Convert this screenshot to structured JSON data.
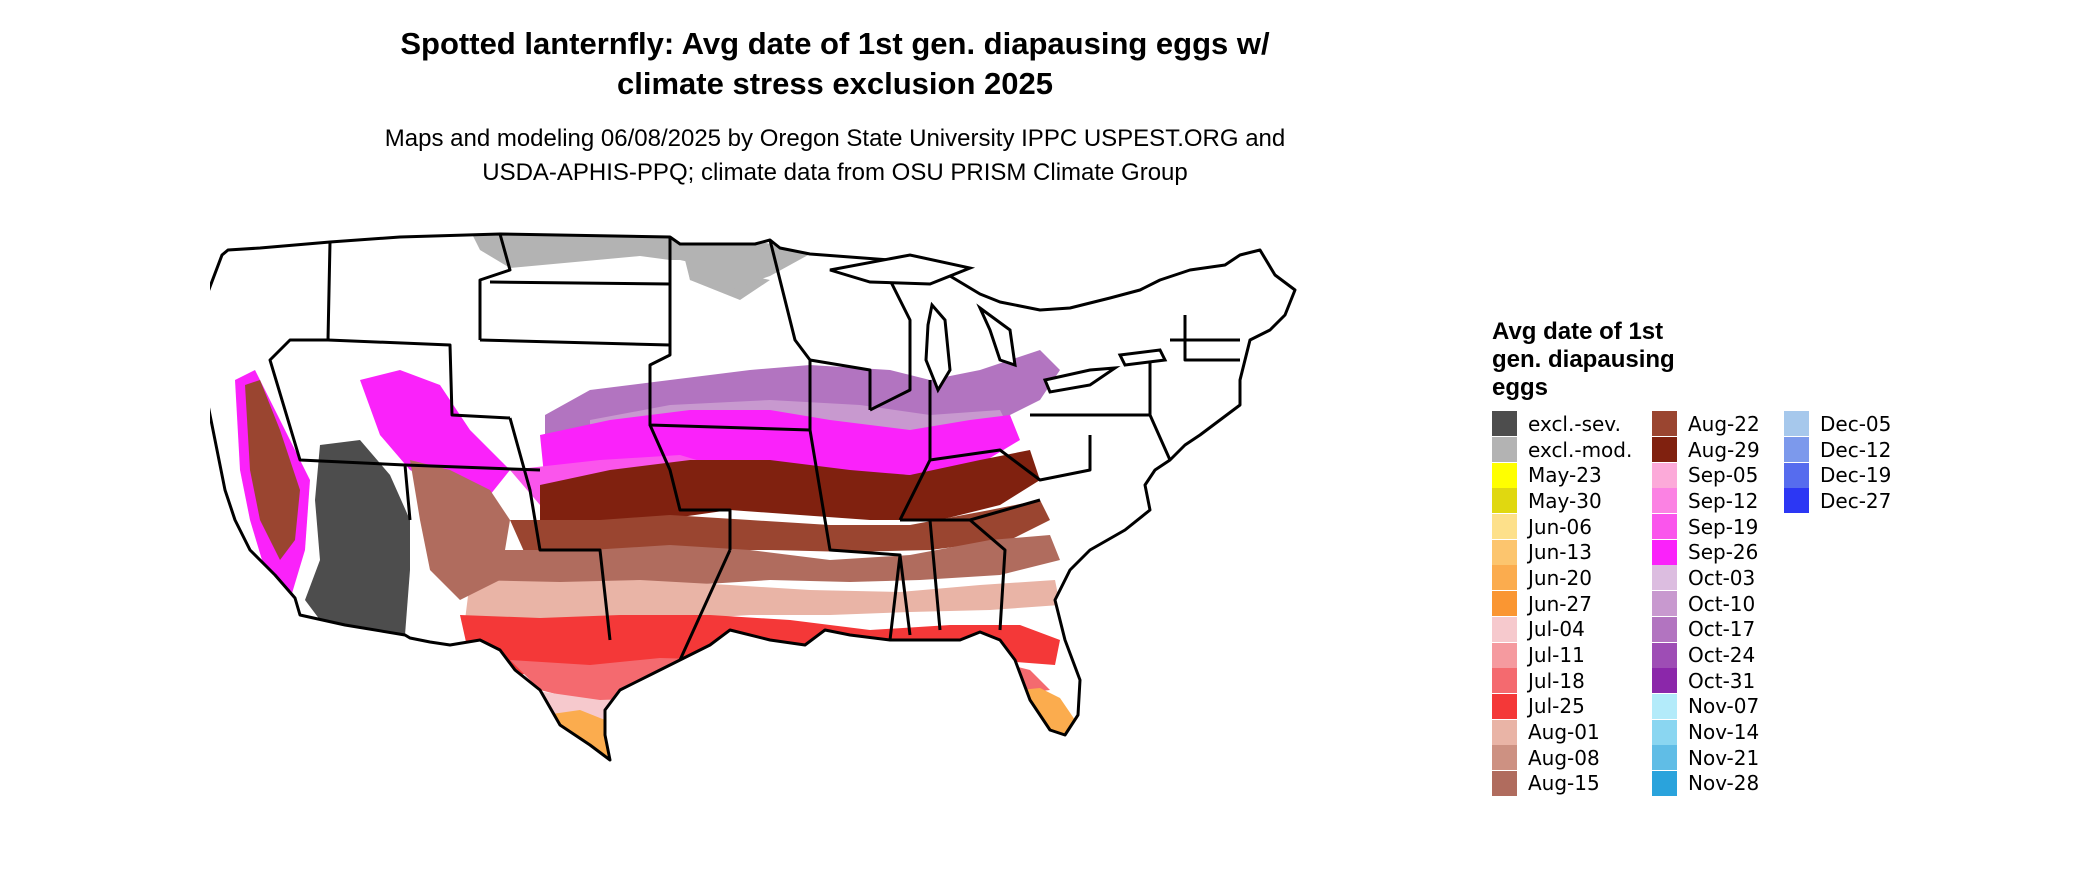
{
  "header": {
    "title_line1": "Spotted lanternfly: Avg date of 1st gen. diapausing eggs w/",
    "title_line2": "climate stress exclusion 2025",
    "subtitle_line1": "Maps and modeling 06/08/2025 by Oregon State University IPPC USPEST.ORG and",
    "subtitle_line2": "USDA-APHIS-PPQ; climate data from OSU PRISM Climate Group"
  },
  "legend": {
    "title_line1": "Avg date of 1st",
    "title_line2": "gen. diapausing",
    "title_line3": "eggs",
    "columns": [
      [
        {
          "label": "excl.-sev.",
          "color": "#4d4d4d"
        },
        {
          "label": "excl.-mod.",
          "color": "#b3b3b3"
        },
        {
          "label": "May-23",
          "color": "#ffff00"
        },
        {
          "label": "May-30",
          "color": "#e0d810"
        },
        {
          "label": "Jun-06",
          "color": "#fde08a"
        },
        {
          "label": "Jun-13",
          "color": "#fcc56e"
        },
        {
          "label": "Jun-20",
          "color": "#fbac4e"
        },
        {
          "label": "Jun-27",
          "color": "#fa9632"
        },
        {
          "label": "Jul-04",
          "color": "#f6c9cd"
        },
        {
          "label": "Jul-11",
          "color": "#f59a9f"
        },
        {
          "label": "Jul-18",
          "color": "#f46a6f"
        },
        {
          "label": "Jul-25",
          "color": "#f43838"
        },
        {
          "label": "Aug-01",
          "color": "#e9b4a6"
        },
        {
          "label": "Aug-08",
          "color": "#cd9182"
        },
        {
          "label": "Aug-15",
          "color": "#b06c5e"
        }
      ],
      [
        {
          "label": "Aug-22",
          "color": "#9a4530"
        },
        {
          "label": "Aug-29",
          "color": "#80210f"
        },
        {
          "label": "Sep-05",
          "color": "#fcaad9"
        },
        {
          "label": "Sep-12",
          "color": "#fb82e3"
        },
        {
          "label": "Sep-19",
          "color": "#fa55ec"
        },
        {
          "label": "Sep-26",
          "color": "#fa22fa"
        },
        {
          "label": "Oct-03",
          "color": "#dcbde0"
        },
        {
          "label": "Oct-10",
          "color": "#c899cf"
        },
        {
          "label": "Oct-17",
          "color": "#b274c0"
        },
        {
          "label": "Oct-24",
          "color": "#9e4db5"
        },
        {
          "label": "Oct-31",
          "color": "#8b27aa"
        },
        {
          "label": "Nov-07",
          "color": "#b3ebfa"
        },
        {
          "label": "Nov-14",
          "color": "#8ad6f1"
        },
        {
          "label": "Nov-21",
          "color": "#60bde6"
        },
        {
          "label": "Nov-28",
          "color": "#2aa3dc"
        }
      ],
      [
        {
          "label": "Dec-05",
          "color": "#a6c8ec"
        },
        {
          "label": "Dec-12",
          "color": "#7c99ec"
        },
        {
          "label": "Dec-19",
          "color": "#566cee"
        },
        {
          "label": "Dec-27",
          "color": "#2c37f4"
        }
      ]
    ]
  }
}
